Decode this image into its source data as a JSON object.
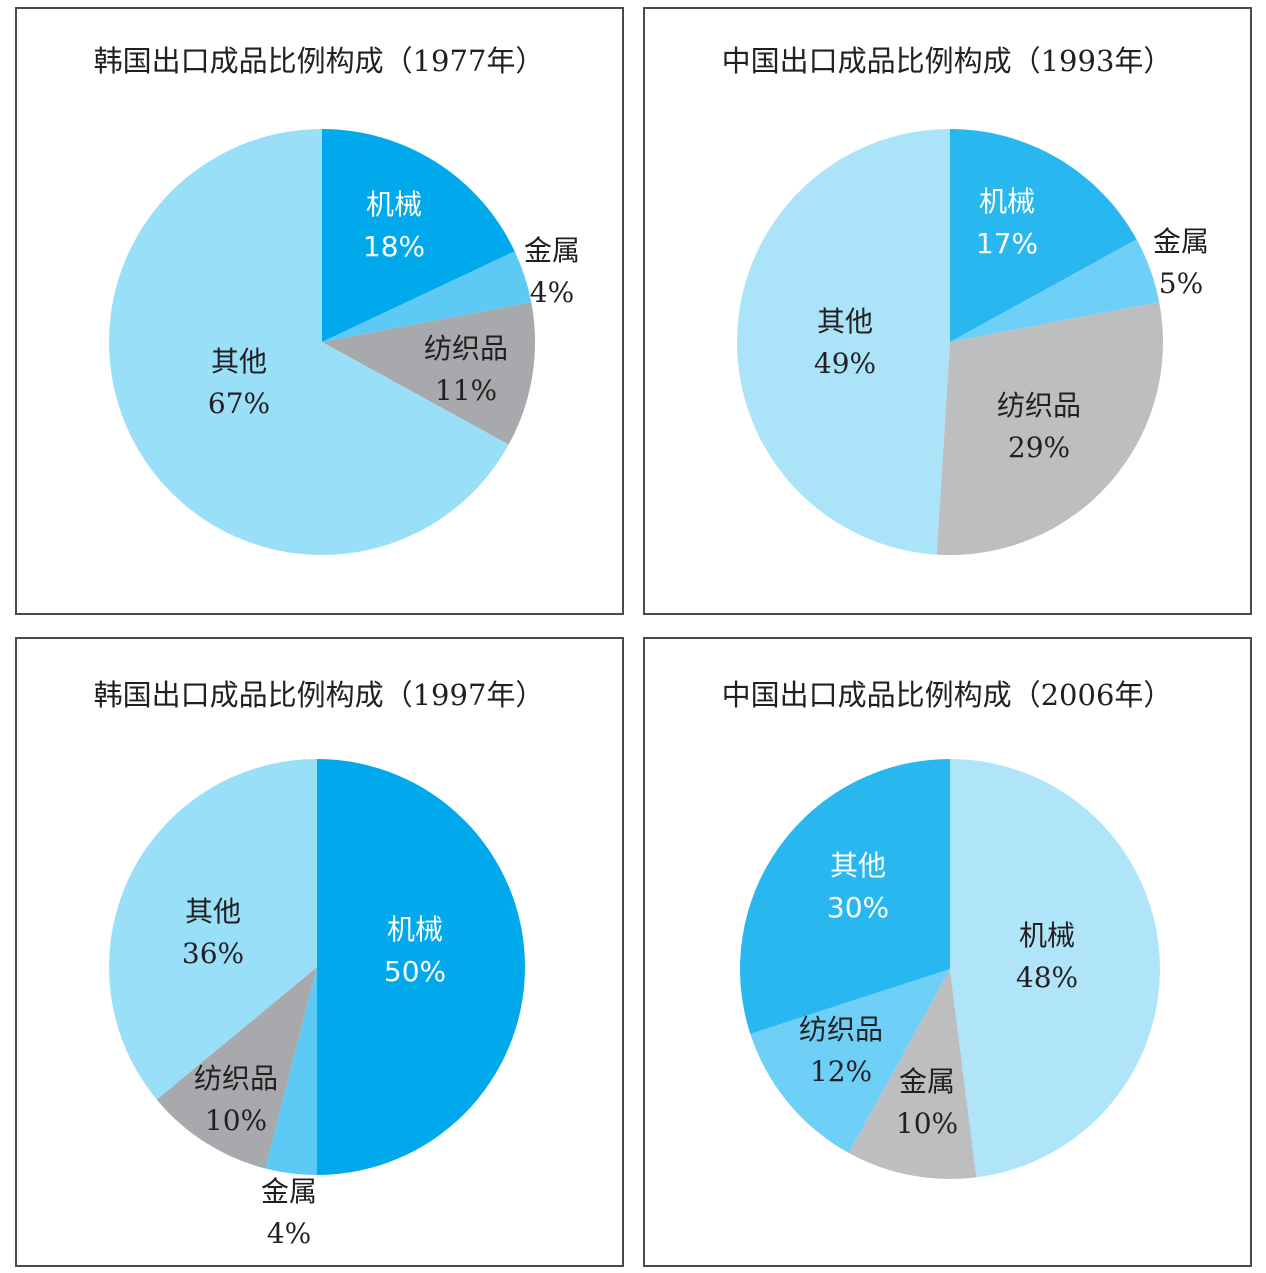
{
  "chart_data": [
    {
      "type": "pie",
      "title": "韩国出口成品比例构成（1977年）",
      "slices": [
        {
          "name": "机械",
          "value": 18,
          "label": "18%",
          "color": "#00a9ec",
          "text": "light"
        },
        {
          "name": "金属",
          "value": 4,
          "label": "4%",
          "color": "#5ccaf5",
          "text": "dark"
        },
        {
          "name": "纺织品",
          "value": 11,
          "label": "11%",
          "color": "#a7a9ac",
          "text": "dark"
        },
        {
          "name": "其他",
          "value": 67,
          "label": "67%",
          "color": "#9adff8",
          "text": "dark"
        }
      ]
    },
    {
      "type": "pie",
      "title": "中国出口成品比例构成（1993年）",
      "slices": [
        {
          "name": "机械",
          "value": 17,
          "label": "17%",
          "color": "#29b7ef",
          "text": "light"
        },
        {
          "name": "金属",
          "value": 5,
          "label": "5%",
          "color": "#6ed0f6",
          "text": "dark"
        },
        {
          "name": "纺织品",
          "value": 29,
          "label": "29%",
          "color": "#bcbec0",
          "text": "dark"
        },
        {
          "name": "其他",
          "value": 49,
          "label": "49%",
          "color": "#abe4f9",
          "text": "dark"
        }
      ]
    },
    {
      "type": "pie",
      "title": "韩国出口成品比例构成（1997年）",
      "slices": [
        {
          "name": "机械",
          "value": 50,
          "label": "50%",
          "color": "#00a9ec",
          "text": "light"
        },
        {
          "name": "金属",
          "value": 4,
          "label": "4%",
          "color": "#5ccaf5",
          "text": "dark"
        },
        {
          "name": "纺织品",
          "value": 10,
          "label": "10%",
          "color": "#a7a9ac",
          "text": "dark"
        },
        {
          "name": "其他",
          "value": 36,
          "label": "36%",
          "color": "#9adff8",
          "text": "dark"
        }
      ]
    },
    {
      "type": "pie",
      "title": "中国出口成品比例构成（2006年）",
      "slices": [
        {
          "name": "机械",
          "value": 48,
          "label": "48%",
          "color": "#b0e5f9",
          "text": "dark"
        },
        {
          "name": "金属",
          "value": 10,
          "label": "10%",
          "color": "#bcbec0",
          "text": "dark"
        },
        {
          "name": "纺织品",
          "value": 12,
          "label": "12%",
          "color": "#6ed0f6",
          "text": "dark"
        },
        {
          "name": "其他",
          "value": 30,
          "label": "30%",
          "color": "#29b7ef",
          "text": "light"
        }
      ]
    }
  ]
}
